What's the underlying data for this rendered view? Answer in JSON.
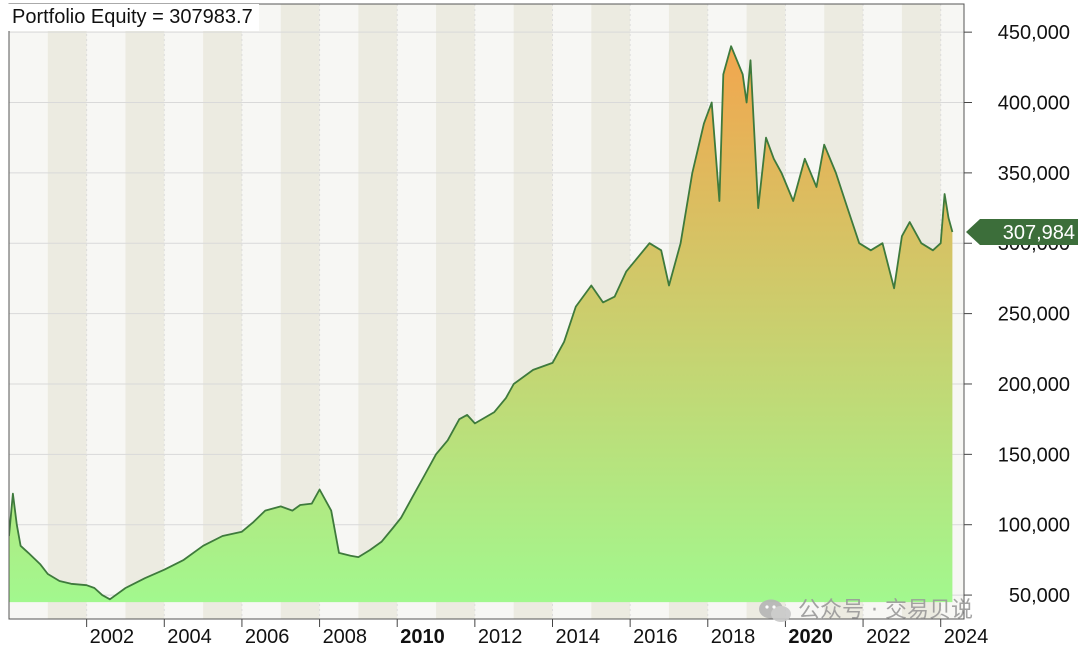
{
  "chart_data": {
    "type": "area",
    "title": "Portfolio Equity = 307983.7",
    "last_value_label": "307,984",
    "x_tick_labels": [
      "2002",
      "2004",
      "2006",
      "2008",
      "2010",
      "2012",
      "2014",
      "2016",
      "2018",
      "2020",
      "2022",
      "2024"
    ],
    "bold_x_ticks": [
      "2010",
      "2020"
    ],
    "y_tick_labels": [
      "50,000",
      "100,000",
      "150,000",
      "200,000",
      "250,000",
      "300,000",
      "350,000",
      "400,000",
      "450,000"
    ],
    "y_ticks": [
      50000,
      100000,
      150000,
      200000,
      250000,
      300000,
      350000,
      400000,
      450000
    ],
    "xlim": [
      2000.0,
      2024.6
    ],
    "ylim": [
      33000,
      470000
    ],
    "grid": true,
    "colors": {
      "line": "#3e7a3c",
      "fill_bottom": "#a2f88e",
      "fill_top": "#f2a64e",
      "band_light": "#f7f7f4",
      "band_dark": "#ecebe1",
      "label_bg": "#3c6e3a"
    },
    "series": [
      {
        "x": [
          2000.0,
          2000.1,
          2000.2,
          2000.3,
          2000.5,
          2000.8,
          2001.0,
          2001.3,
          2001.6,
          2002.0,
          2002.2,
          2002.4,
          2002.6,
          2003.0,
          2003.5,
          2004.0,
          2004.5,
          2005.0,
          2005.5,
          2006.0,
          2006.3,
          2006.6,
          2007.0,
          2007.3,
          2007.5,
          2007.8,
          2008.0,
          2008.3,
          2008.5,
          2008.8,
          2009.0,
          2009.3,
          2009.6,
          2009.9,
          2010.1,
          2010.4,
          2010.7,
          2011.0,
          2011.3,
          2011.6,
          2011.8,
          2012.0,
          2012.5,
          2012.8,
          2013.0,
          2013.5,
          2014.0,
          2014.3,
          2014.6,
          2015.0,
          2015.3,
          2015.6,
          2015.9,
          2016.2,
          2016.5,
          2016.8,
          2017.0,
          2017.3,
          2017.6,
          2017.9,
          2018.1,
          2018.3,
          2018.4,
          2018.6,
          2018.9,
          2019.0,
          2019.1,
          2019.3,
          2019.5,
          2019.7,
          2019.9,
          2020.2,
          2020.5,
          2020.8,
          2021.0,
          2021.3,
          2021.6,
          2021.9,
          2022.2,
          2022.5,
          2022.8,
          2023.0,
          2023.2,
          2023.5,
          2023.8,
          2024.0,
          2024.1,
          2024.2,
          2024.3
        ],
        "y": [
          92000,
          122000,
          100000,
          85000,
          80000,
          72000,
          65000,
          60000,
          58000,
          57000,
          55000,
          50000,
          47000,
          55000,
          62000,
          68000,
          75000,
          85000,
          92000,
          95000,
          102000,
          110000,
          113000,
          110000,
          114000,
          115000,
          125000,
          110000,
          80000,
          78000,
          77000,
          82000,
          88000,
          98000,
          105000,
          120000,
          135000,
          150000,
          160000,
          175000,
          178000,
          172000,
          180000,
          190000,
          200000,
          210000,
          215000,
          230000,
          255000,
          270000,
          258000,
          262000,
          280000,
          290000,
          300000,
          295000,
          270000,
          300000,
          350000,
          385000,
          400000,
          330000,
          420000,
          440000,
          420000,
          400000,
          430000,
          325000,
          375000,
          360000,
          350000,
          330000,
          360000,
          340000,
          370000,
          350000,
          325000,
          300000,
          295000,
          300000,
          268000,
          305000,
          315000,
          300000,
          295000,
          300000,
          335000,
          318000,
          307984
        ]
      }
    ]
  },
  "watermark": {
    "text": "公众号 · 交易贝说"
  }
}
